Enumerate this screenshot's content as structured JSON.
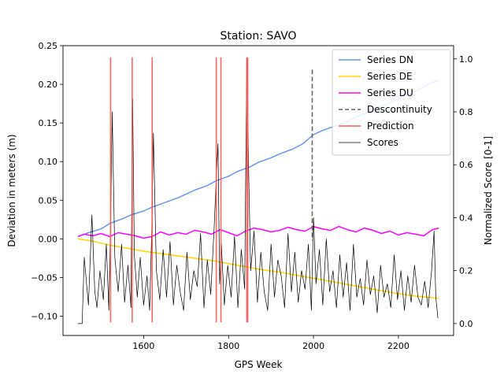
{
  "chart_data": {
    "type": "line",
    "title": "Station: SAVO",
    "xlabel": "GPS Week",
    "ylabel": "Deviation in meters (m)",
    "y2label": "Normalized Score [0-1]",
    "xlim": [
      1410,
      2330
    ],
    "ylim": [
      -0.125,
      0.25
    ],
    "y2lim": [
      -0.045,
      1.05
    ],
    "xticks": [
      1600,
      1800,
      2000,
      2200
    ],
    "yticks": [
      -0.1,
      -0.05,
      0.0,
      0.05,
      0.1,
      0.15,
      0.2,
      0.25
    ],
    "y2ticks": [
      0.0,
      0.2,
      0.4,
      0.6,
      0.8,
      1.0
    ],
    "xtick_labels": [
      "1600",
      "1800",
      "2000",
      "2200"
    ],
    "ytick_labels": [
      "−0.10",
      "−0.05",
      "0.00",
      "0.05",
      "0.10",
      "0.15",
      "0.20",
      "0.25"
    ],
    "y2tick_labels": [
      "0.0",
      "0.2",
      "0.4",
      "0.6",
      "0.8",
      "1.0"
    ],
    "legend_position": "top-right",
    "grid": false,
    "series": [
      {
        "name": "Series DN",
        "color": "#6495ED",
        "axis": "left",
        "x": [
          1445,
          1470,
          1500,
          1520,
          1550,
          1570,
          1600,
          1620,
          1650,
          1680,
          1700,
          1720,
          1750,
          1770,
          1800,
          1820,
          1850,
          1870,
          1900,
          1920,
          1950,
          1975,
          2000,
          2020,
          2050,
          2080,
          2100,
          2130,
          2150,
          2180,
          2200,
          2230,
          2250,
          2270,
          2295
        ],
        "values": [
          0.003,
          0.008,
          0.013,
          0.02,
          0.026,
          0.031,
          0.036,
          0.041,
          0.047,
          0.053,
          0.058,
          0.063,
          0.069,
          0.075,
          0.081,
          0.087,
          0.093,
          0.099,
          0.105,
          0.11,
          0.116,
          0.123,
          0.135,
          0.14,
          0.146,
          0.152,
          0.158,
          0.164,
          0.17,
          0.176,
          0.182,
          0.188,
          0.194,
          0.2,
          0.206
        ]
      },
      {
        "name": "Series DE",
        "color": "#FFD700",
        "axis": "left",
        "x": [
          1445,
          1480,
          1520,
          1560,
          1600,
          1640,
          1680,
          1720,
          1760,
          1800,
          1840,
          1880,
          1920,
          1960,
          2000,
          2040,
          2080,
          2120,
          2160,
          2200,
          2240,
          2295
        ],
        "values": [
          0.0,
          -0.003,
          -0.008,
          -0.012,
          -0.016,
          -0.019,
          -0.022,
          -0.025,
          -0.028,
          -0.032,
          -0.036,
          -0.04,
          -0.043,
          -0.047,
          -0.051,
          -0.055,
          -0.059,
          -0.063,
          -0.067,
          -0.071,
          -0.074,
          -0.077
        ]
      },
      {
        "name": "Series DU",
        "color": "#FF00FF",
        "axis": "left",
        "x": [
          1445,
          1460,
          1480,
          1500,
          1520,
          1540,
          1560,
          1580,
          1600,
          1620,
          1640,
          1660,
          1680,
          1700,
          1720,
          1740,
          1760,
          1780,
          1800,
          1820,
          1840,
          1860,
          1880,
          1900,
          1920,
          1940,
          1960,
          1980,
          2000,
          2020,
          2040,
          2060,
          2080,
          2100,
          2120,
          2140,
          2160,
          2180,
          2200,
          2220,
          2240,
          2260,
          2280,
          2295
        ],
        "values": [
          0.003,
          0.006,
          0.004,
          0.007,
          0.003,
          0.008,
          0.006,
          0.004,
          0.001,
          0.003,
          0.009,
          0.005,
          0.008,
          0.006,
          0.011,
          0.009,
          0.006,
          0.012,
          0.008,
          0.004,
          0.01,
          0.014,
          0.012,
          0.009,
          0.011,
          0.015,
          0.012,
          0.01,
          0.016,
          0.013,
          0.011,
          0.016,
          0.012,
          0.009,
          0.014,
          0.011,
          0.007,
          0.01,
          0.005,
          0.008,
          0.006,
          0.004,
          0.012,
          0.014
        ]
      },
      {
        "name": "Scores",
        "color": "#000000",
        "axis": "right",
        "x": [
          1445,
          1455,
          1460,
          1470,
          1478,
          1485,
          1490,
          1497,
          1505,
          1512,
          1518,
          1522,
          1526,
          1532,
          1540,
          1548,
          1555,
          1563,
          1570,
          1574,
          1578,
          1585,
          1592,
          1600,
          1608,
          1614,
          1619,
          1623,
          1630,
          1638,
          1646,
          1654,
          1662,
          1670,
          1678,
          1686,
          1694,
          1702,
          1710,
          1718,
          1726,
          1734,
          1742,
          1750,
          1758,
          1766,
          1771,
          1775,
          1779,
          1783,
          1790,
          1798,
          1806,
          1814,
          1822,
          1830,
          1838,
          1843,
          1847,
          1852,
          1860,
          1868,
          1876,
          1884,
          1892,
          1900,
          1908,
          1916,
          1924,
          1932,
          1940,
          1948,
          1956,
          1964,
          1972,
          1980,
          1988,
          1995,
          2000,
          2006,
          2014,
          2022,
          2030,
          2038,
          2046,
          2054,
          2062,
          2070,
          2078,
          2086,
          2094,
          2102,
          2110,
          2118,
          2126,
          2134,
          2142,
          2150,
          2158,
          2166,
          2174,
          2182,
          2190,
          2198,
          2206,
          2214,
          2222,
          2230,
          2238,
          2246,
          2254,
          2262,
          2270,
          2278,
          2284,
          2288,
          2293
        ],
        "values": [
          0.0,
          0.0,
          0.25,
          0.07,
          0.41,
          0.12,
          0.06,
          0.2,
          0.09,
          0.3,
          0.05,
          0.38,
          0.8,
          0.25,
          0.12,
          0.3,
          0.08,
          0.22,
          0.06,
          0.85,
          0.26,
          0.1,
          0.25,
          0.07,
          0.18,
          0.05,
          0.35,
          0.72,
          0.2,
          0.09,
          0.28,
          0.1,
          0.31,
          0.07,
          0.22,
          0.12,
          0.05,
          0.27,
          0.09,
          0.2,
          0.14,
          0.34,
          0.06,
          0.24,
          0.11,
          0.36,
          0.55,
          0.68,
          0.15,
          0.3,
          0.07,
          0.22,
          0.1,
          0.33,
          0.06,
          0.28,
          0.13,
          1.0,
          0.6,
          0.2,
          0.35,
          0.08,
          0.27,
          0.12,
          0.05,
          0.3,
          0.1,
          0.24,
          0.18,
          0.06,
          0.34,
          0.12,
          0.27,
          0.08,
          0.2,
          0.13,
          0.3,
          0.05,
          0.4,
          0.15,
          0.28,
          0.07,
          0.32,
          0.12,
          0.2,
          0.06,
          0.26,
          0.1,
          0.23,
          0.05,
          0.3,
          0.1,
          0.17,
          0.07,
          0.24,
          0.11,
          0.18,
          0.04,
          0.22,
          0.1,
          0.15,
          0.06,
          0.26,
          0.09,
          0.2,
          0.05,
          0.18,
          0.08,
          0.22,
          0.1,
          0.07,
          0.16,
          0.06,
          0.2,
          0.35,
          0.1,
          0.02
        ]
      }
    ],
    "discontinuity": {
      "name": "Descontinuity",
      "color": "#666666",
      "x": 1997,
      "y_top": 0.219,
      "y_bottom": -0.002
    },
    "prediction": {
      "name": "Prediction",
      "color": "#FF5555",
      "x": [
        1522,
        1573,
        1620,
        1771,
        1782,
        1843,
        1845
      ],
      "y_top": 0.235,
      "y_bottom": -0.108
    },
    "legend": [
      {
        "label": "Series DN",
        "color": "#6495ED",
        "style": "solid"
      },
      {
        "label": "Series DE",
        "color": "#FFD700",
        "style": "solid"
      },
      {
        "label": "Series DU",
        "color": "#FF00FF",
        "style": "solid"
      },
      {
        "label": "Descontinuity",
        "color": "#666666",
        "style": "dashed"
      },
      {
        "label": "Prediction",
        "color": "#FF5555",
        "style": "solid"
      },
      {
        "label": "Scores",
        "color": "#000000",
        "style": "thin"
      }
    ]
  }
}
